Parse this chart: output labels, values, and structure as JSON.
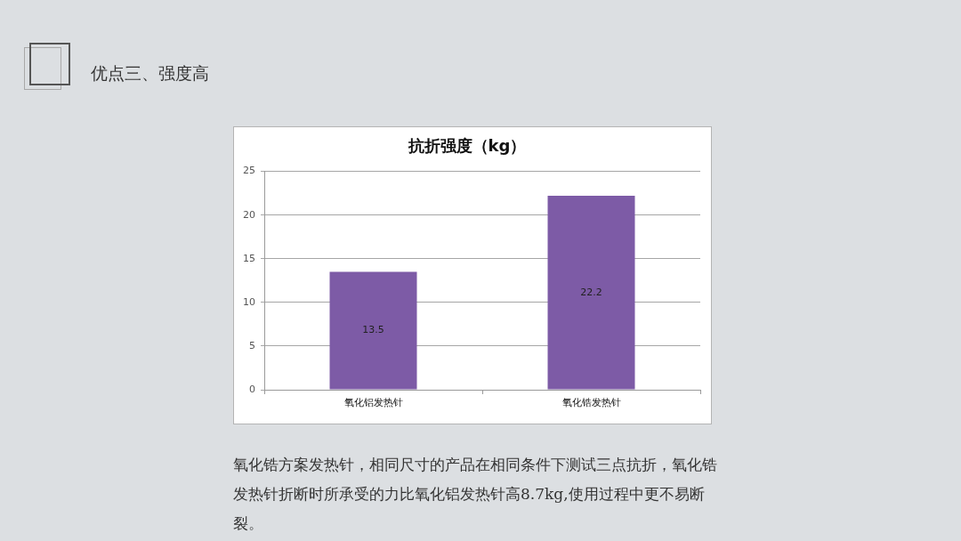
{
  "chart_data": {
    "type": "bar",
    "title": "抗折强度（kg）",
    "subtitle": "优点三、强度高",
    "categories": [
      "氧化铝发热针",
      "氧化锆发热针"
    ],
    "values": [
      13.5,
      22.2
    ],
    "color": "#7d5ba6",
    "ylim": [
      0,
      25
    ],
    "yticks": [
      0,
      5,
      10,
      15,
      20,
      25
    ],
    "grid": "y",
    "legend": false,
    "data_labels": true,
    "annotations": [
      "氧化锆方案发热针，相同尺寸的产品在相同条件下测试三点抗折，氧化锆发热针折断时所承受的力比氧化铝发热针高8.7kg,使用过程中更不易断裂。"
    ]
  }
}
